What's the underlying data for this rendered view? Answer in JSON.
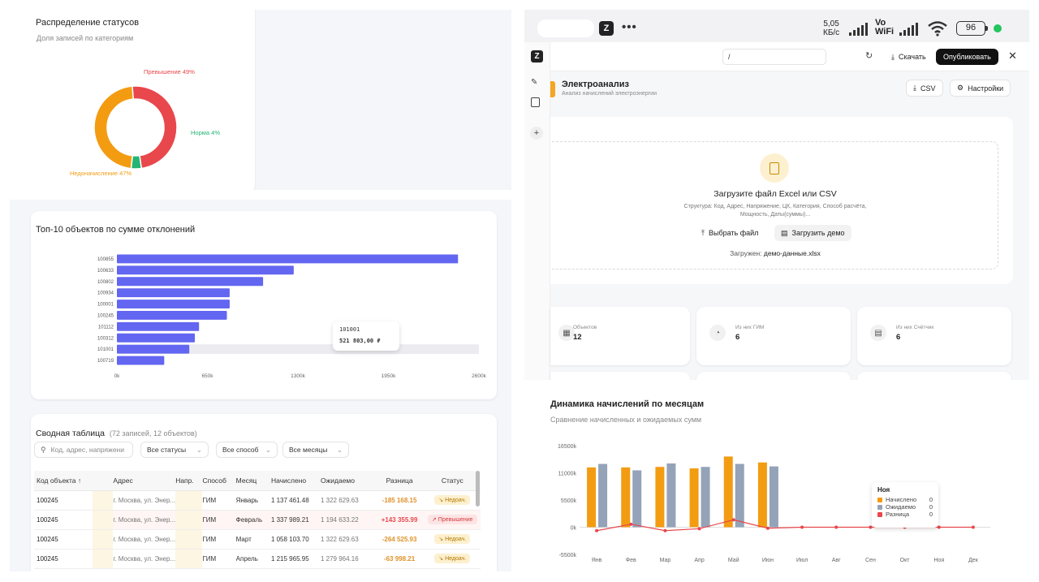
{
  "status_card": {
    "title": "Распределение статусов",
    "subtitle": "Доля записей по категориям",
    "labels": {
      "exceed": "Превышение 49%",
      "norm": "Норма 4%",
      "under": "Недоначисление 47%"
    },
    "chart_data": {
      "type": "pie",
      "categories": [
        "Превышение",
        "Норма",
        "Недоначисление"
      ],
      "values": [
        49,
        4,
        47
      ],
      "colors": [
        "#e8474c",
        "#22b573",
        "#f39c12"
      ]
    }
  },
  "top10_card": {
    "title": "Топ-10 объектов по сумме отклонений",
    "tooltip": {
      "id": "101001",
      "value": "521 803,00 ₽"
    },
    "chart_data": {
      "type": "bar",
      "orientation": "horizontal",
      "categories": [
        "100855",
        "100633",
        "100802",
        "100934",
        "100001",
        "100245",
        "101112",
        "100312",
        "101001",
        "100719"
      ],
      "values": [
        2450,
        1270,
        1050,
        810,
        810,
        790,
        590,
        560,
        520,
        340
      ],
      "xlim": [
        0,
        2600
      ],
      "xticks": [
        "0k",
        "650k",
        "1300k",
        "1950k",
        "2600k"
      ],
      "color": "#6366f1"
    }
  },
  "table_card": {
    "title": "Сводная таблица",
    "count": "(72 записей, 12 объектов)",
    "search_placeholder": "Код, адрес, напряжени",
    "filters": [
      "Все статусы",
      "Все способ",
      "Все месяцы"
    ],
    "columns": [
      "Код объекта ↑",
      "Адрес",
      "Напр.",
      "Способ",
      "Месяц",
      "Начислено",
      "Ожидаемо",
      "Разница",
      "Статус"
    ],
    "rows": [
      {
        "code": "100245",
        "address": "г. Москва, ул. Энер...",
        "voltage": "",
        "method": "ГИМ",
        "month": "Январь",
        "charged": "1 137 461.48",
        "expected": "1 322 629.63",
        "diff": "-185 168.15",
        "status": "Недоач.",
        "kind": "under"
      },
      {
        "code": "100245",
        "address": "г. Москва, ул. Энер...",
        "voltage": "",
        "method": "ГИМ",
        "month": "Февраль",
        "charged": "1 337 989.21",
        "expected": "1 194 633.22",
        "diff": "+143 355.99",
        "status": "Превышение",
        "kind": "exceed"
      },
      {
        "code": "100245",
        "address": "г. Москва, ул. Энер...",
        "voltage": "",
        "method": "ГИМ",
        "month": "Март",
        "charged": "1 058 103.70",
        "expected": "1 322 629.63",
        "diff": "-264 525.93",
        "status": "Недоач.",
        "kind": "under"
      },
      {
        "code": "100245",
        "address": "г. Москва, ул. Энер...",
        "voltage": "",
        "method": "ГИМ",
        "month": "Апрель",
        "charged": "1 215 965.95",
        "expected": "1 279 964.16",
        "diff": "-63 998.21",
        "status": "Недоач.",
        "kind": "under"
      }
    ]
  },
  "phone": {
    "status_bar": {
      "speed": "5,05",
      "speed_unit": "КБ/с",
      "network": "Vo",
      "wifi_label": "WiFi",
      "battery": "96"
    },
    "app_bar": {
      "path": "/",
      "download": "Скачать",
      "publish": "Опубликовать"
    },
    "header": {
      "title": "Электроанализ",
      "subtitle": "Анализ начислений электроэнергии",
      "csv": "CSV",
      "settings": "Настройки"
    },
    "upload": {
      "title": "Загрузите файл Excel или CSV",
      "structure_line1": "Структура: Код, Адрес, Напряжение, ЦК, Категория, Способ расчёта,",
      "structure_line2": "Мощность, Даты(суммы)...",
      "choose": "Выбрать файл",
      "demo": "Загрузить демо",
      "loaded_label": "Загружен:",
      "loaded_file": "демо-данные.xlsx"
    },
    "stats": [
      {
        "label": "Объектов",
        "value": "12",
        "icon": "building-icon"
      },
      {
        "label": "Из них ГИМ",
        "value": "6",
        "icon": "gauge-icon"
      },
      {
        "label": "Из них Счётчик",
        "value": "6",
        "icon": "meter-icon"
      }
    ]
  },
  "dynamics_card": {
    "title": "Динамика начислений по месяцам",
    "subtitle": "Сравнение начисленных и ожидаемых сумм",
    "tooltip": {
      "month": "Ноя",
      "rows": [
        {
          "label": "Начислено",
          "value": "0"
        },
        {
          "label": "Ожидаемо",
          "value": "0"
        },
        {
          "label": "Разница",
          "value": "0"
        }
      ]
    },
    "chart_data": {
      "type": "bar",
      "categories": [
        "Янв",
        "Фев",
        "Мар",
        "Апр",
        "Май",
        "Июн",
        "Июл",
        "Авг",
        "Сен",
        "Окт",
        "Ноя",
        "Дек"
      ],
      "ylim": [
        -5500,
        16500
      ],
      "yticks": [
        "16500k",
        "11000k",
        "5500k",
        "0k",
        "-5500k"
      ],
      "series": [
        {
          "name": "Начислено",
          "type": "bar",
          "color": "#f39c12",
          "values": [
            12100,
            12100,
            12200,
            11900,
            14300,
            13100,
            0,
            0,
            0,
            0,
            0,
            0
          ]
        },
        {
          "name": "Ожидаемо",
          "type": "bar",
          "color": "#94a3b8",
          "values": [
            12800,
            11500,
            12900,
            12200,
            12800,
            12300,
            0,
            0,
            0,
            0,
            0,
            0
          ]
        },
        {
          "name": "Разница",
          "type": "line",
          "color": "#e8474c",
          "values": [
            -700,
            600,
            -700,
            -300,
            1500,
            -200,
            0,
            0,
            0,
            0,
            0,
            0
          ]
        }
      ]
    }
  }
}
